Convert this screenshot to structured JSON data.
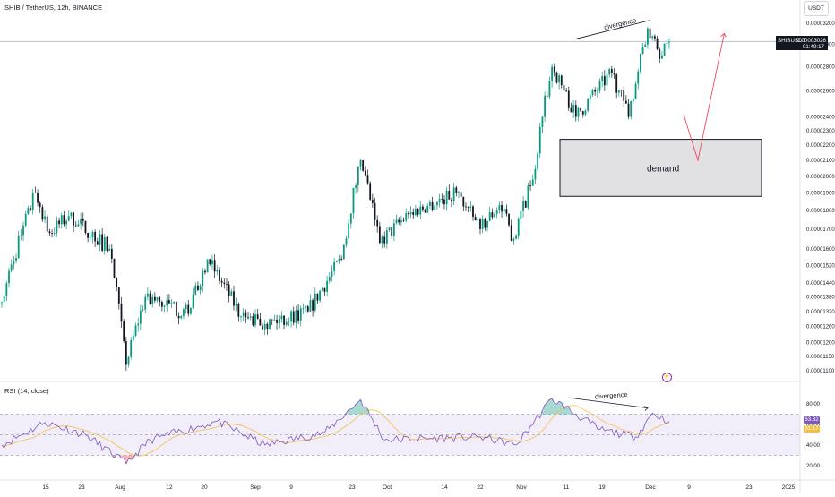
{
  "header": {
    "symbol": "SHIB / TetherUS, 12h, BINANCE",
    "currency": "USDT"
  },
  "price_marker": {
    "symbol": "SHIBUSDT",
    "value": "0.00003026",
    "countdown": "01:49:17"
  },
  "rsi_header": "RSI (14, close)",
  "rsi_markers": {
    "rsi_value": "63.32",
    "ma_value": "61.17",
    "rsi_color": "#7e57c2",
    "ma_color": "#f5c042"
  },
  "annotations": {
    "demand": "demand",
    "divergence_price": "divergence",
    "divergence_rsi": "divergence"
  },
  "chart_data": {
    "type": "candlestick",
    "price_axis_labels": [
      "0.00003200",
      "0.00003000",
      "0.00002800",
      "0.00002600",
      "0.00002400",
      "0.00002300",
      "0.00002200",
      "0.00002100",
      "0.00002000",
      "0.00001900",
      "0.00001800",
      "0.00001700",
      "0.00001600",
      "0.00001520",
      "0.00001440",
      "0.00001380",
      "0.00001320",
      "0.00001260",
      "0.00001200",
      "0.00001150",
      "0.00001100"
    ],
    "time_axis_labels": [
      "15",
      "23",
      "Aug",
      "12",
      "20",
      "Sep",
      "9",
      "23",
      "Oct",
      "14",
      "22",
      "Nov",
      "11",
      "19",
      "Dec",
      "9",
      "23",
      "2025"
    ],
    "rsi_axis_labels": [
      "80.00",
      "60.00",
      "40.00",
      "20.00"
    ],
    "up_color": "#089981",
    "down_color": "#131722",
    "candles_close_keypoints": [
      {
        "t": 0,
        "close": 1.36e-05
      },
      {
        "t": 14,
        "close": 1.9e-05
      },
      {
        "t": 20,
        "close": 1.68e-05
      },
      {
        "t": 28,
        "close": 1.77e-05
      },
      {
        "t": 45,
        "close": 1.6e-05
      },
      {
        "t": 52,
        "close": 1.12e-05
      },
      {
        "t": 60,
        "close": 1.38e-05
      },
      {
        "t": 78,
        "close": 1.31e-05
      },
      {
        "t": 86,
        "close": 1.55e-05
      },
      {
        "t": 100,
        "close": 1.3e-05
      },
      {
        "t": 110,
        "close": 1.27e-05
      },
      {
        "t": 128,
        "close": 1.32e-05
      },
      {
        "t": 142,
        "close": 1.55e-05
      },
      {
        "t": 150,
        "close": 2.1e-05
      },
      {
        "t": 158,
        "close": 1.63e-05
      },
      {
        "t": 170,
        "close": 1.78e-05
      },
      {
        "t": 190,
        "close": 1.9e-05
      },
      {
        "t": 200,
        "close": 1.7e-05
      },
      {
        "t": 208,
        "close": 1.83e-05
      },
      {
        "t": 214,
        "close": 1.65e-05
      },
      {
        "t": 222,
        "close": 1.98e-05
      },
      {
        "t": 226,
        "close": 2.4e-05
      },
      {
        "t": 230,
        "close": 2.8e-05
      },
      {
        "t": 240,
        "close": 2.4e-05
      },
      {
        "t": 255,
        "close": 2.75e-05
      },
      {
        "t": 262,
        "close": 2.4e-05
      },
      {
        "t": 270,
        "close": 3.15e-05
      },
      {
        "t": 276,
        "close": 2.9e-05
      },
      {
        "t": 279,
        "close": 3.02e-05
      }
    ],
    "rsi_keypoints": [
      {
        "t": 0,
        "rsi": 40
      },
      {
        "t": 18,
        "rsi": 62
      },
      {
        "t": 35,
        "rsi": 50
      },
      {
        "t": 52,
        "rsi": 22
      },
      {
        "t": 62,
        "rsi": 45
      },
      {
        "t": 90,
        "rsi": 63
      },
      {
        "t": 110,
        "rsi": 40
      },
      {
        "t": 135,
        "rsi": 52
      },
      {
        "t": 150,
        "rsi": 84
      },
      {
        "t": 160,
        "rsi": 45
      },
      {
        "t": 200,
        "rsi": 48
      },
      {
        "t": 215,
        "rsi": 40
      },
      {
        "t": 230,
        "rsi": 85
      },
      {
        "t": 250,
        "rsi": 55
      },
      {
        "t": 265,
        "rsi": 48
      },
      {
        "t": 272,
        "rsi": 71
      },
      {
        "t": 279,
        "rsi": 63
      }
    ],
    "demand_zone": {
      "low": 1.88e-05,
      "high": 2.24e-05
    },
    "projection": [
      {
        "t": 285,
        "close": 2.42e-05
      },
      {
        "t": 291,
        "close": 2.1e-05
      },
      {
        "t": 302,
        "close": 3.1e-05
      }
    ],
    "rsi_bands": {
      "upper": 70,
      "middle": 50,
      "lower": 30
    }
  }
}
